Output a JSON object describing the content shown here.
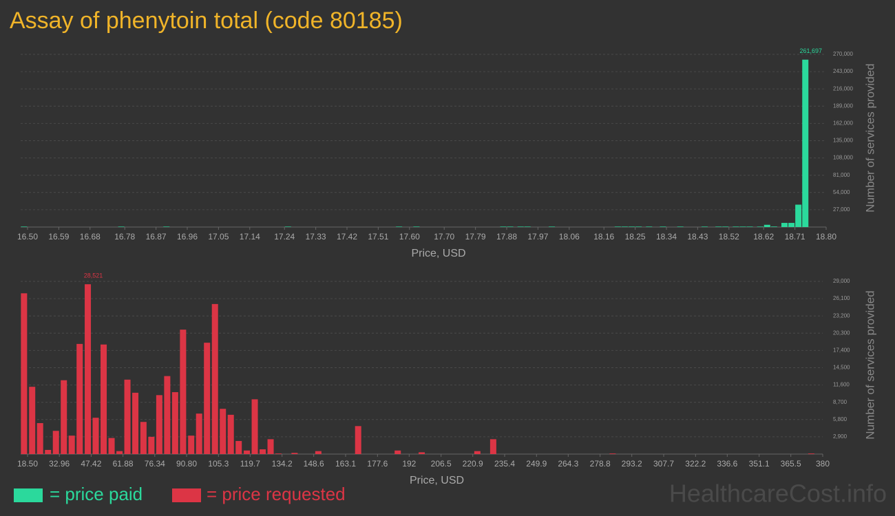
{
  "title": "Assay of phenytoin total (code 80185)",
  "watermark": "HealthcareCost.info",
  "chart_data": [
    {
      "type": "bar",
      "xlabel": "Price, USD",
      "ylabel": "Number of services provided",
      "grid": true,
      "xlim": [
        16.5,
        18.8
      ],
      "xticks": [
        {
          "value": 16.5,
          "label": "16.50"
        },
        16.59,
        16.68,
        16.78,
        16.87,
        16.96,
        17.05,
        17.14,
        17.24,
        17.33,
        17.42,
        17.51,
        {
          "value": 17.6,
          "label": "17.60"
        },
        {
          "value": 17.7,
          "label": "17.70"
        },
        17.79,
        17.88,
        17.97,
        18.06,
        18.16,
        18.25,
        18.34,
        18.43,
        18.52,
        18.62,
        18.71,
        {
          "value": 18.8,
          "label": "18.80"
        }
      ],
      "ylim": [
        0,
        270000
      ],
      "yticks": [
        {
          "value": 27000,
          "label": "27,000"
        },
        {
          "value": 54000,
          "label": "54,000"
        },
        {
          "value": 81000,
          "label": "81,000"
        },
        {
          "value": 108000,
          "label": "108,000"
        },
        {
          "value": 135000,
          "label": "135,000"
        },
        {
          "value": 162000,
          "label": "162,000"
        },
        {
          "value": 189000,
          "label": "189,000"
        },
        {
          "value": 216000,
          "label": "216,000"
        },
        {
          "value": 243000,
          "label": "243,000"
        },
        {
          "value": 270000,
          "label": "270,000"
        }
      ],
      "x": [
        16.49,
        16.77,
        16.9,
        17.25,
        17.57,
        17.62,
        17.87,
        17.89,
        17.92,
        17.94,
        18.01,
        18.2,
        18.22,
        18.24,
        18.26,
        18.29,
        18.33,
        18.38,
        18.45,
        18.49,
        18.51,
        18.54,
        18.56,
        18.58,
        18.61,
        18.63,
        18.65,
        18.68,
        18.7,
        18.72,
        18.74
      ],
      "series": [
        {
          "name": "= price paid",
          "color": "#2bd99c",
          "values": [
            700,
            700,
            700,
            700,
            700,
            700,
            700,
            700,
            700,
            700,
            700,
            700,
            700,
            700,
            700,
            700,
            700,
            700,
            700,
            700,
            700,
            700,
            700,
            700,
            700,
            3500,
            800,
            6500,
            6500,
            35000,
            261697
          ],
          "value_labels": [
            null,
            null,
            null,
            null,
            null,
            null,
            null,
            null,
            null,
            null,
            null,
            null,
            null,
            null,
            null,
            null,
            null,
            null,
            null,
            null,
            null,
            null,
            null,
            null,
            null,
            null,
            null,
            null,
            null,
            null,
            "261,697"
          ]
        }
      ]
    },
    {
      "type": "bar",
      "xlabel": "Price, USD",
      "ylabel": "Number of services provided",
      "grid": true,
      "xlim": [
        18.5,
        380
      ],
      "xticks": [
        {
          "value": 18.5,
          "label": "18.50"
        },
        32.96,
        47.42,
        61.88,
        76.34,
        {
          "value": 90.8,
          "label": "90.80"
        },
        105.3,
        119.7,
        134.2,
        148.6,
        163.1,
        177.6,
        192,
        206.5,
        220.9,
        235.4,
        249.9,
        264.3,
        278.8,
        293.2,
        307.7,
        322.2,
        336.6,
        351.1,
        365.5,
        380
      ],
      "ylim": [
        0,
        29000
      ],
      "yticks": [
        {
          "value": 2900,
          "label": "2,900"
        },
        {
          "value": 5800,
          "label": "5,800"
        },
        {
          "value": 8700,
          "label": "8,700"
        },
        {
          "value": 11600,
          "label": "11,600"
        },
        {
          "value": 14500,
          "label": "14,500"
        },
        {
          "value": 17400,
          "label": "17,400"
        },
        {
          "value": 20300,
          "label": "20,300"
        },
        {
          "value": 23200,
          "label": "23,200"
        },
        {
          "value": 26100,
          "label": "26,100"
        },
        {
          "value": 29000,
          "label": "29,000"
        }
      ],
      "x": [
        16.9,
        20.6,
        24.2,
        27.8,
        31.4,
        35.0,
        38.6,
        42.2,
        45.9,
        49.5,
        53.1,
        56.7,
        60.3,
        63.9,
        67.5,
        71.2,
        74.8,
        78.4,
        82.0,
        85.6,
        89.2,
        92.9,
        96.5,
        100.1,
        103.7,
        107.3,
        110.9,
        114.5,
        118.2,
        121.8,
        125.4,
        129.0,
        132.6,
        139.9,
        150.7,
        168.8,
        186.8,
        197.7,
        223.0,
        230.2,
        284.5,
        374.8
      ],
      "series": [
        {
          "name": "= price requested",
          "color": "#dc3545",
          "values": [
            27000,
            11300,
            5200,
            700,
            3900,
            12400,
            3100,
            18500,
            28521,
            6100,
            18400,
            2700,
            500,
            12500,
            10300,
            5400,
            2900,
            9900,
            13100,
            10400,
            20900,
            3100,
            6800,
            18700,
            25200,
            7600,
            6600,
            2200,
            600,
            9200,
            800,
            2500,
            100,
            200,
            500,
            4700,
            600,
            300,
            500,
            2500,
            100,
            100
          ],
          "value_labels": [
            null,
            null,
            null,
            null,
            null,
            null,
            null,
            null,
            "28,521",
            null,
            null,
            null,
            null,
            null,
            null,
            null,
            null,
            null,
            null,
            null,
            null,
            null,
            null,
            null,
            null,
            null,
            null,
            null,
            null,
            null,
            null,
            null,
            null,
            null,
            null,
            null,
            null,
            null,
            null,
            null,
            null,
            null
          ]
        }
      ]
    }
  ]
}
